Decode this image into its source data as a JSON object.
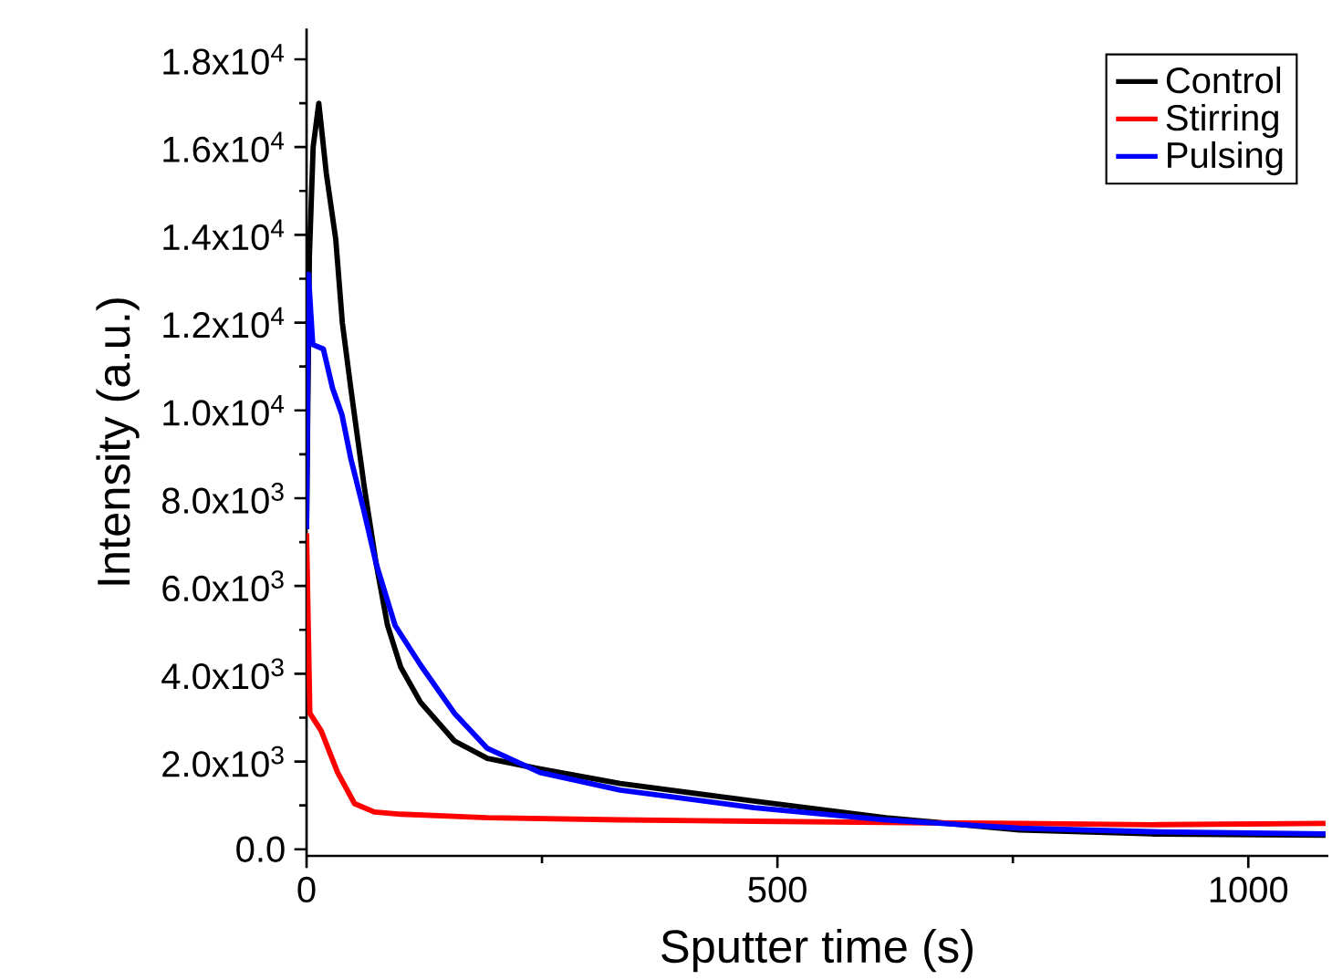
{
  "chart_data": {
    "type": "line",
    "xlabel": "Sputter time (s)",
    "ylabel": "Intensity (a.u.)",
    "xlim": [
      0,
      1085
    ],
    "xticks": [
      0,
      500,
      1000
    ],
    "ylim": [
      -150,
      18700
    ],
    "yticks": [
      {
        "value": 0,
        "label": "0.0"
      },
      {
        "value": 2000,
        "label": "2.0x10$^{3}$"
      },
      {
        "value": 4000,
        "label": "4.0x10$^{3}$"
      },
      {
        "value": 6000,
        "label": "6.0x10$^{3}$"
      },
      {
        "value": 8000,
        "label": "8.0x10$^{3}$"
      },
      {
        "value": 10000,
        "label": "1.0x10$^{4}$"
      },
      {
        "value": 12000,
        "label": "1.2x10$^{4}$"
      },
      {
        "value": 14000,
        "label": "1.4x10$^{4}$"
      },
      {
        "value": 16000,
        "label": "1.6x10$^{4}$"
      },
      {
        "value": 18000,
        "label": "1.8x10$^{4}$"
      }
    ],
    "legend": "top right",
    "grid": false,
    "marker": "none",
    "line_style": "solid",
    "series": [
      {
        "name": "Control",
        "color": "#000000",
        "x": [
          0,
          3,
          7,
          13,
          21,
          31,
          38,
          47,
          61,
          74,
          86,
          100,
          121,
          157,
          192,
          248,
          333,
          475,
          615,
          757,
          898,
          1082
        ],
        "values": [
          7300,
          13500,
          16000,
          17000,
          15400,
          13900,
          12000,
          10500,
          8300,
          6500,
          5100,
          4150,
          3350,
          2470,
          2070,
          1830,
          1500,
          1100,
          720,
          440,
          350,
          320
        ]
      },
      {
        "name": "Stirring",
        "color": "#ff0000",
        "x": [
          0,
          3.5,
          15.5,
          33,
          51,
          72,
          100,
          192,
          333,
          475,
          615,
          757,
          898,
          1082
        ],
        "values": [
          7200,
          3100,
          2700,
          1750,
          1040,
          850,
          800,
          720,
          670,
          640,
          610,
          590,
          560,
          590
        ]
      },
      {
        "name": "Pulsing",
        "color": "#0000ff",
        "x": [
          0,
          2,
          6.6,
          17.8,
          27.7,
          37.6,
          47,
          61,
          74,
          94,
          121,
          157,
          192,
          248,
          333,
          475,
          615,
          757,
          898,
          1082
        ],
        "values": [
          7300,
          13100,
          11500,
          11400,
          10500,
          9900,
          8900,
          7700,
          6500,
          5100,
          4200,
          3100,
          2300,
          1750,
          1350,
          950,
          670,
          480,
          400,
          350
        ]
      }
    ]
  }
}
